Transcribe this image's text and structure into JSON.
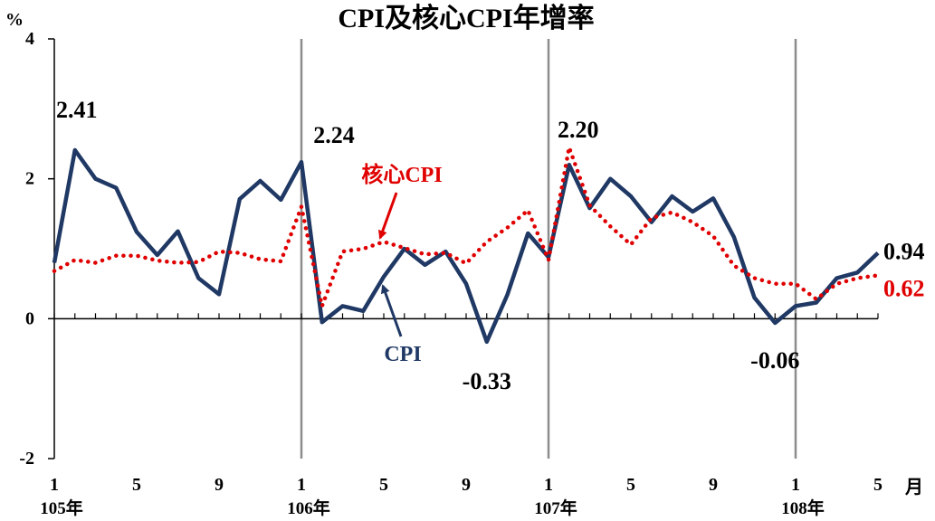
{
  "chart_data": {
    "type": "line",
    "title": "CPI及核心CPI年增率",
    "ylabel": "%",
    "xlabel": "月",
    "ylim": [
      -2,
      4
    ],
    "yticks": [
      -2,
      0,
      2,
      4
    ],
    "month_tick_labels": [
      "1",
      "5",
      "9",
      "1",
      "5",
      "9",
      "1",
      "5",
      "9",
      "1",
      "5"
    ],
    "month_tick_index": [
      0,
      4,
      8,
      12,
      16,
      20,
      24,
      28,
      32,
      36,
      40
    ],
    "year_labels": [
      "105年",
      "106年",
      "107年",
      "108年"
    ],
    "year_boundary_index": [
      12,
      24,
      36
    ],
    "grid": false,
    "series": [
      {
        "name": "CPI",
        "color": "#1f3864",
        "style": "solid",
        "values": [
          0.8,
          2.41,
          2.0,
          1.87,
          1.24,
          0.91,
          1.25,
          0.58,
          0.35,
          1.71,
          1.97,
          1.7,
          2.24,
          -0.05,
          0.18,
          0.11,
          0.6,
          1.0,
          0.77,
          0.96,
          0.5,
          -0.33,
          0.34,
          1.22,
          0.88,
          2.2,
          1.58,
          2.0,
          1.75,
          1.38,
          1.75,
          1.53,
          1.72,
          1.17,
          0.3,
          -0.06,
          0.18,
          0.23,
          0.58,
          0.66,
          0.94
        ]
      },
      {
        "name": "核心CPI",
        "color": "#e00000",
        "style": "dotted",
        "values": [
          0.68,
          0.84,
          0.8,
          0.9,
          0.9,
          0.83,
          0.8,
          0.81,
          0.96,
          0.94,
          0.85,
          0.82,
          1.6,
          0.18,
          0.96,
          1.0,
          1.1,
          1.01,
          0.92,
          0.94,
          0.79,
          1.1,
          1.3,
          1.55,
          0.84,
          2.45,
          1.62,
          1.32,
          1.06,
          1.44,
          1.52,
          1.38,
          1.18,
          0.76,
          0.58,
          0.5,
          0.5,
          0.28,
          0.5,
          0.58,
          0.62
        ]
      }
    ],
    "annotations": [
      {
        "text": "2.41",
        "series": 0,
        "index": 1,
        "color": "#000000"
      },
      {
        "text": "2.24",
        "series": 0,
        "index": 12,
        "color": "#000000"
      },
      {
        "text": "2.20",
        "series": 0,
        "index": 25,
        "color": "#000000"
      },
      {
        "text": "-0.33",
        "series": 0,
        "index": 21,
        "color": "#000000"
      },
      {
        "text": "-0.06",
        "series": 0,
        "index": 35,
        "color": "#000000"
      },
      {
        "text": "0.94",
        "series": 0,
        "index": 40,
        "color": "#000000"
      },
      {
        "text": "0.62",
        "series": 1,
        "index": 40,
        "color": "#e00000"
      }
    ],
    "callouts": [
      {
        "text": "核心CPI",
        "series": 1,
        "color": "#e00000"
      },
      {
        "text": "CPI",
        "series": 0,
        "color": "#1f3864"
      }
    ]
  }
}
